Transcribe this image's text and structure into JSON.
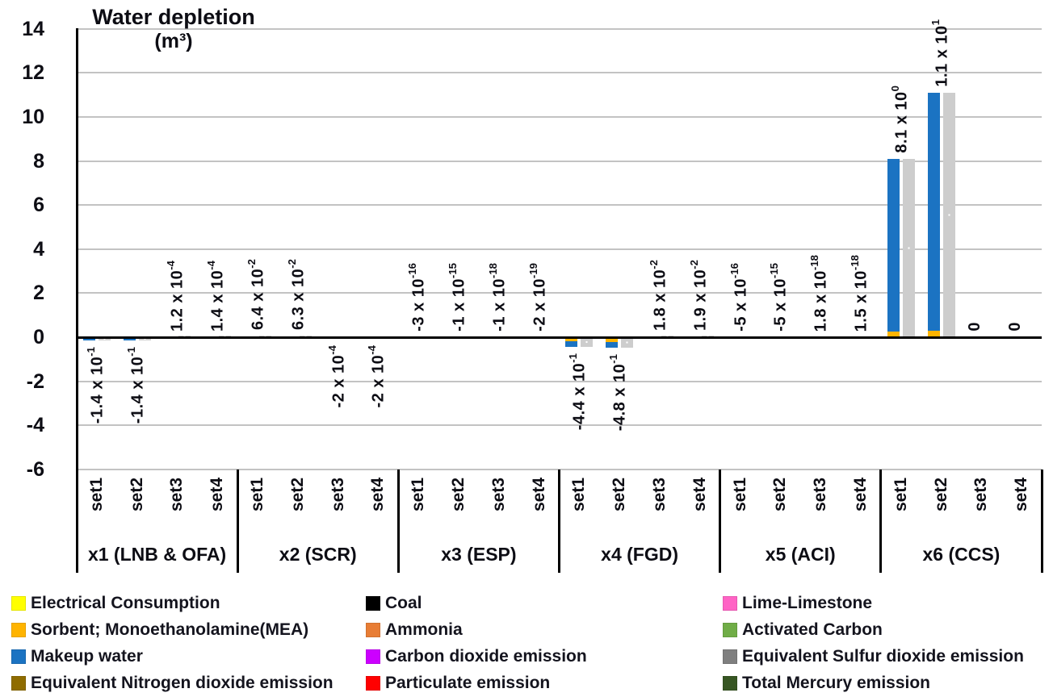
{
  "chart_data": {
    "type": "bar",
    "title": "Water depletion",
    "unit": "(m³)",
    "ylim": [
      -6,
      14
    ],
    "ytick_step": 2,
    "yticks": [
      14,
      12,
      10,
      8,
      6,
      4,
      2,
      0,
      -2,
      -4,
      -6
    ],
    "grid": true,
    "set_names": [
      "set1",
      "set2",
      "set3",
      "set4"
    ],
    "series_colors": {
      "makeup_water": "#1B73C2",
      "sorbent_mea": "#FFB400",
      "total_dotted": "#CDCDCD"
    },
    "groups": [
      {
        "label": "x1 (LNB & OFA)",
        "sets": [
          {
            "name": "set1",
            "value": -0.14,
            "display": "-1.4 x 10^-1",
            "label_side": "below",
            "segments": [
              {
                "series": "makeup_water",
                "value": -0.14
              }
            ]
          },
          {
            "name": "set2",
            "value": -0.14,
            "display": "-1.4 x 10^-1",
            "label_side": "below",
            "segments": [
              {
                "series": "makeup_water",
                "value": -0.14
              }
            ]
          },
          {
            "name": "set3",
            "value": 0.00012,
            "display": "1.2 x 10^-4",
            "label_side": "above",
            "segments": []
          },
          {
            "name": "set4",
            "value": 0.00014,
            "display": "1.4 x 10^-4",
            "label_side": "above",
            "segments": []
          }
        ]
      },
      {
        "label": "x2 (SCR)",
        "sets": [
          {
            "name": "set1",
            "value": 0.064,
            "display": "6.4 x 10^-2",
            "label_side": "above",
            "segments": []
          },
          {
            "name": "set2",
            "value": 0.063,
            "display": "6.3 x 10^-2",
            "label_side": "above",
            "segments": []
          },
          {
            "name": "set3",
            "value": -0.0002,
            "display": "-2 x 10^-4",
            "label_side": "below",
            "segments": []
          },
          {
            "name": "set4",
            "value": -0.0002,
            "display": "-2 x 10^-4",
            "label_side": "below",
            "segments": []
          }
        ]
      },
      {
        "label": "x3 (ESP)",
        "sets": [
          {
            "name": "set1",
            "value": -3e-16,
            "display": "-3 x 10^-16",
            "label_side": "above",
            "segments": []
          },
          {
            "name": "set2",
            "value": -1e-15,
            "display": "-1 x 10^-15",
            "label_side": "above",
            "segments": []
          },
          {
            "name": "set3",
            "value": -1e-18,
            "display": "-1 x 10^-18",
            "label_side": "above",
            "segments": []
          },
          {
            "name": "set4",
            "value": -2e-19,
            "display": "-2 x 10^-19",
            "label_side": "above",
            "segments": []
          }
        ]
      },
      {
        "label": "x4 (FGD)",
        "sets": [
          {
            "name": "set1",
            "value": -0.44,
            "display": "-4.4 x 10^-1",
            "label_side": "below",
            "segments": [
              {
                "series": "sorbent_mea",
                "value": -0.2
              },
              {
                "series": "makeup_water",
                "value": -0.24
              }
            ]
          },
          {
            "name": "set2",
            "value": -0.48,
            "display": "-4.8 x 10^-1",
            "label_side": "below",
            "segments": [
              {
                "series": "sorbent_mea",
                "value": -0.22
              },
              {
                "series": "makeup_water",
                "value": -0.26
              }
            ]
          },
          {
            "name": "set3",
            "value": 0.018,
            "display": "1.8 x 10^-2",
            "label_side": "above",
            "segments": []
          },
          {
            "name": "set4",
            "value": 0.019,
            "display": "1.9 x 10^-2",
            "label_side": "above",
            "segments": []
          }
        ]
      },
      {
        "label": "x5 (ACI)",
        "sets": [
          {
            "name": "set1",
            "value": -5e-16,
            "display": "-5 x 10^-16",
            "label_side": "above",
            "segments": []
          },
          {
            "name": "set2",
            "value": -5e-15,
            "display": "-5 x 10^-15",
            "label_side": "above",
            "segments": []
          },
          {
            "name": "set3",
            "value": 1.8e-18,
            "display": "1.8 x 10^-18",
            "label_side": "above",
            "segments": []
          },
          {
            "name": "set4",
            "value": 1.5e-18,
            "display": "1.5 x 10^-18",
            "label_side": "above",
            "segments": []
          }
        ]
      },
      {
        "label": "x6 (CCS)",
        "sets": [
          {
            "name": "set1",
            "value": 8.1,
            "display": "8.1 x 10^0",
            "label_side": "above",
            "segments": [
              {
                "series": "sorbent_mea",
                "value": 0.25
              },
              {
                "series": "makeup_water",
                "value": 7.85
              }
            ]
          },
          {
            "name": "set2",
            "value": 11.1,
            "display": "1.1 x 10^1",
            "label_side": "above",
            "segments": [
              {
                "series": "sorbent_mea",
                "value": 0.3
              },
              {
                "series": "makeup_water",
                "value": 10.8
              }
            ]
          },
          {
            "name": "set3",
            "value": 0,
            "display": "0",
            "label_side": "above",
            "segments": []
          },
          {
            "name": "set4",
            "value": 0,
            "display": "0",
            "label_side": "above",
            "segments": []
          }
        ]
      }
    ]
  },
  "legend": {
    "columns": [
      [
        {
          "label": "Electrical Consumption",
          "color": "#FFFF00"
        },
        {
          "label": "Sorbent; Monoethanolamine(MEA)",
          "color": "#FFB400"
        },
        {
          "label": "Makeup water",
          "color": "#1B73C2"
        },
        {
          "label": "Equivalent Nitrogen dioxide emission",
          "color": "#8F6C00"
        }
      ],
      [
        {
          "label": "Coal",
          "color": "#000000"
        },
        {
          "label": "Ammonia",
          "color": "#E87D35"
        },
        {
          "label": "Carbon dioxide emission",
          "color": "#CC00FF"
        },
        {
          "label": "Particulate emission",
          "color": "#FF0000"
        }
      ],
      [
        {
          "label": "Lime-Limestone",
          "color": "#FF63C5"
        },
        {
          "label": "Activated Carbon",
          "color": "#70AD47"
        },
        {
          "label": "Equivalent Sulfur dioxide emission",
          "color": "#7F7F7F"
        },
        {
          "label": "Total Mercury emission",
          "color": "#375623"
        }
      ]
    ]
  }
}
